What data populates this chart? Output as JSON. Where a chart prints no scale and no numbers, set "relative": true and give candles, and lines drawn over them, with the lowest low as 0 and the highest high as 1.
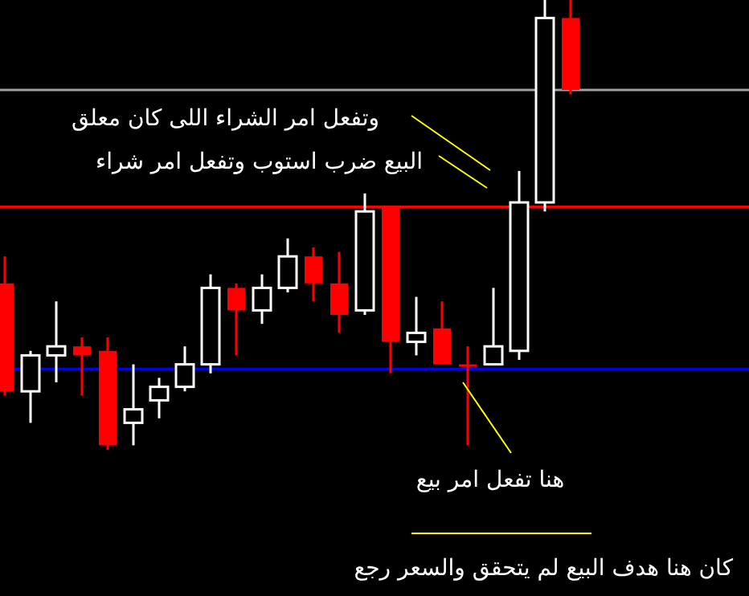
{
  "chart_data": {
    "type": "candlestick",
    "relative": true,
    "categories": [
      null,
      null,
      null,
      null,
      null,
      null,
      null,
      null,
      null,
      null,
      null,
      null,
      null,
      null,
      null,
      null,
      null,
      null,
      null,
      null,
      null,
      null,
      null
    ],
    "ohlc": [
      [
        0.37,
        0.43,
        0.12,
        0.13
      ],
      [
        0.13,
        0.22,
        0.06,
        0.21
      ],
      [
        0.21,
        0.33,
        0.15,
        0.23
      ],
      [
        0.23,
        0.25,
        0.12,
        0.21
      ],
      [
        0.22,
        0.25,
        0,
        0.01
      ],
      [
        0.06,
        0.19,
        0.01,
        0.09
      ],
      [
        0.11,
        0.16,
        0.07,
        0.14
      ],
      [
        0.14,
        0.23,
        0.13,
        0.19
      ],
      [
        0.19,
        0.39,
        0.17,
        0.36
      ],
      [
        0.36,
        0.37,
        0.21,
        0.31
      ],
      [
        0.31,
        0.39,
        0.28,
        0.36
      ],
      [
        0.36,
        0.47,
        0.35,
        0.43
      ],
      [
        0.43,
        0.45,
        0.33,
        0.37
      ],
      [
        0.37,
        0.44,
        0.26,
        0.3
      ],
      [
        0.31,
        0.57,
        0.3,
        0.53
      ],
      [
        0.54,
        0.54,
        0.17,
        0.24
      ],
      [
        0.24,
        0.34,
        0.21,
        0.26
      ],
      [
        0.27,
        0.33,
        0.19,
        0.19
      ],
      [
        0.19,
        0.23,
        0.01,
        0.19
      ],
      [
        0.19,
        0.36,
        0.19,
        0.23
      ],
      [
        0.22,
        0.62,
        0.2,
        0.55
      ],
      [
        0.55,
        1,
        0.53,
        0.96
      ],
      [
        0.96,
        1,
        0.79,
        0.8
      ]
    ],
    "colors": [
      "#ff0000",
      "#ffffff",
      "#ffffff",
      "#ff0000",
      "#ff0000",
      "#ffffff",
      "#ffffff",
      "#ffffff",
      "#ffffff",
      "#ff0000",
      "#ffffff",
      "#ffffff",
      "#ff0000",
      "#ff0000",
      "#ffffff",
      "#ff0000",
      "#ffffff",
      "#ff0000",
      "#ff0000",
      "#ffffff",
      "#ffffff",
      "#ffffff",
      "#ff0000"
    ],
    "ref_lines": [
      {
        "axis": "y",
        "value": 0.8,
        "color": "#a0a0a0"
      },
      {
        "axis": "y",
        "value": 0.54,
        "color": "#ff0000"
      },
      {
        "axis": "y",
        "value": 0.18,
        "color": "#0000ff"
      }
    ],
    "annotations": [
      "وتفعل امر الشراء اللى كان معلق",
      "البيع ضرب استوب وتفعل امر شراء",
      "هنا تفعل امر بيع",
      "كان هنا هدف البيع لم يتحقق والسعر رجع"
    ]
  }
}
